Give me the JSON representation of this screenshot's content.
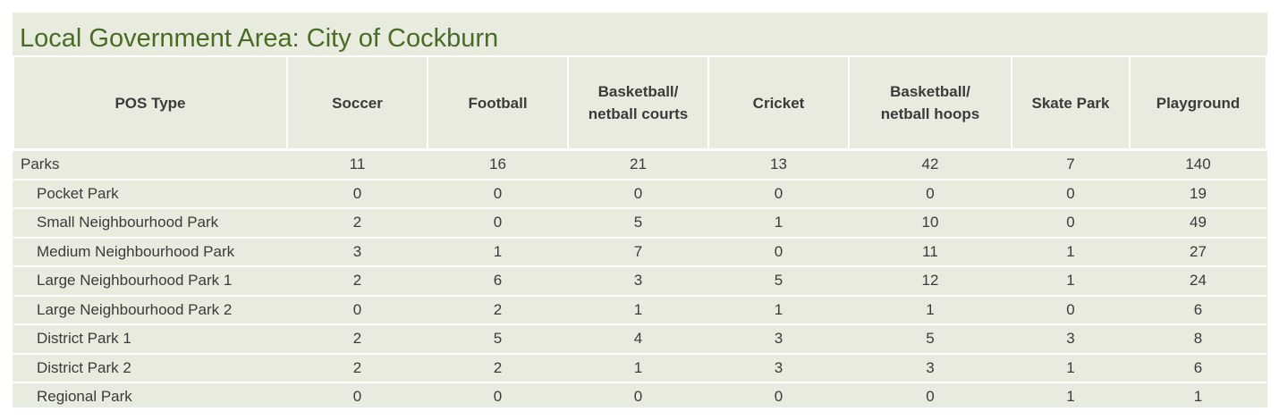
{
  "title": "Local Government Area: City of Cockburn",
  "table": {
    "headers": {
      "pos_type": "POS Type",
      "soccer": "Soccer",
      "football": "Football",
      "bb_courts_line1": "Basketball/",
      "bb_courts_line2": "netball courts",
      "cricket": "Cricket",
      "bb_hoops_line1": "Basketball/",
      "bb_hoops_line2": "netball hoops",
      "skate_park": "Skate Park",
      "playground": "Playground"
    },
    "rows": [
      {
        "name": "Parks",
        "soccer": "11",
        "football": "16",
        "courts": "21",
        "cricket": "13",
        "hoops": "42",
        "skate": "7",
        "playground": "140"
      },
      {
        "name": "Pocket Park",
        "soccer": "0",
        "football": "0",
        "courts": "0",
        "cricket": "0",
        "hoops": "0",
        "skate": "0",
        "playground": "19"
      },
      {
        "name": "Small Neighbourhood Park",
        "soccer": "2",
        "football": "0",
        "courts": "5",
        "cricket": "1",
        "hoops": "10",
        "skate": "0",
        "playground": "49"
      },
      {
        "name": "Medium Neighbourhood Park",
        "soccer": "3",
        "football": "1",
        "courts": "7",
        "cricket": "0",
        "hoops": "11",
        "skate": "1",
        "playground": "27"
      },
      {
        "name": "Large Neighbourhood Park 1",
        "soccer": "2",
        "football": "6",
        "courts": "3",
        "cricket": "5",
        "hoops": "12",
        "skate": "1",
        "playground": "24"
      },
      {
        "name": "Large Neighbourhood Park 2",
        "soccer": "0",
        "football": "2",
        "courts": "1",
        "cricket": "1",
        "hoops": "1",
        "skate": "0",
        "playground": "6"
      },
      {
        "name": "District Park 1",
        "soccer": "2",
        "football": "5",
        "courts": "4",
        "cricket": "3",
        "hoops": "5",
        "skate": "3",
        "playground": "8"
      },
      {
        "name": "District Park 2",
        "soccer": "2",
        "football": "2",
        "courts": "1",
        "cricket": "3",
        "hoops": "3",
        "skate": "1",
        "playground": "6"
      },
      {
        "name": "Regional Park",
        "soccer": "0",
        "football": "0",
        "courts": "0",
        "cricket": "0",
        "hoops": "0",
        "skate": "1",
        "playground": "1"
      }
    ]
  },
  "colors": {
    "panel_background": "#e7ecdf",
    "title_text": "#4a6b25",
    "body_text": "#3b3b3b",
    "grid_lines": "#ffffff"
  }
}
